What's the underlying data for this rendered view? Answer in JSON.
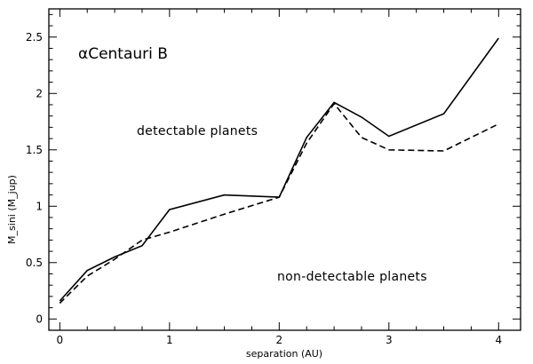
{
  "chart_data": {
    "type": "line",
    "title": "αCentauri B",
    "xlabel": "separation (AU)",
    "ylabel": "M_sini (M_jup)",
    "xlim": [
      -0.1,
      4.2
    ],
    "ylim": [
      -0.1,
      2.75
    ],
    "x_ticks": [
      "0",
      "1",
      "2",
      "3",
      "4"
    ],
    "y_ticks": [
      "0",
      "0.5",
      "1",
      "1.5",
      "2",
      "2.5"
    ],
    "annotations": [
      "detectable planets",
      "non-detectable planets"
    ],
    "grid": false,
    "legend": "none",
    "series": [
      {
        "style": "solid",
        "x": [
          0,
          0.25,
          0.5,
          0.75,
          1.0,
          1.5,
          2.0,
          2.25,
          2.5,
          2.75,
          3.0,
          3.5,
          4.0
        ],
        "y": [
          0.16,
          0.43,
          0.55,
          0.65,
          0.97,
          1.1,
          1.08,
          1.61,
          1.92,
          1.79,
          1.62,
          1.82,
          2.49
        ]
      },
      {
        "style": "dashed",
        "x": [
          0,
          0.25,
          0.5,
          0.75,
          1.0,
          1.5,
          2.0,
          2.25,
          2.5,
          2.75,
          3.0,
          3.5,
          4.0
        ],
        "y": [
          0.14,
          0.38,
          0.53,
          0.7,
          0.77,
          0.93,
          1.08,
          1.56,
          1.91,
          1.61,
          1.5,
          1.49,
          1.73
        ]
      }
    ]
  }
}
